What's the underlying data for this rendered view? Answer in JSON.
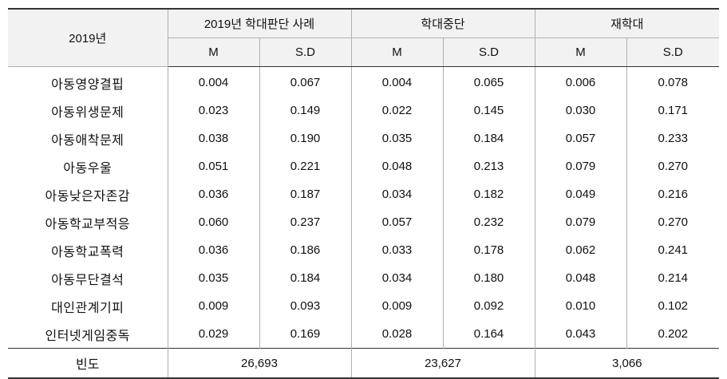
{
  "table": {
    "corner_label": "2019년",
    "groups": [
      "2019년 학대판단 사례",
      "학대중단",
      "재학대"
    ],
    "subheaders": [
      "M",
      "S.D",
      "M",
      "S.D",
      "M",
      "S.D"
    ],
    "rows": [
      {
        "label": "아동영양결핍",
        "values": [
          "0.004",
          "0.067",
          "0.004",
          "0.065",
          "0.006",
          "0.078"
        ]
      },
      {
        "label": "아동위생문제",
        "values": [
          "0.023",
          "0.149",
          "0.022",
          "0.145",
          "0.030",
          "0.171"
        ]
      },
      {
        "label": "아동애착문제",
        "values": [
          "0.038",
          "0.190",
          "0.035",
          "0.184",
          "0.057",
          "0.233"
        ]
      },
      {
        "label": "아동우울",
        "values": [
          "0.051",
          "0.221",
          "0.048",
          "0.213",
          "0.079",
          "0.270"
        ]
      },
      {
        "label": "아동낮은자존감",
        "values": [
          "0.036",
          "0.187",
          "0.034",
          "0.182",
          "0.049",
          "0.216"
        ]
      },
      {
        "label": "아동학교부적응",
        "values": [
          "0.060",
          "0.237",
          "0.057",
          "0.232",
          "0.079",
          "0.270"
        ]
      },
      {
        "label": "아동학교폭력",
        "values": [
          "0.036",
          "0.186",
          "0.033",
          "0.178",
          "0.062",
          "0.241"
        ]
      },
      {
        "label": "아동무단결석",
        "values": [
          "0.035",
          "0.184",
          "0.034",
          "0.180",
          "0.048",
          "0.214"
        ]
      },
      {
        "label": "대인관계기피",
        "values": [
          "0.009",
          "0.093",
          "0.009",
          "0.092",
          "0.010",
          "0.102"
        ]
      },
      {
        "label": "인터넷게임중독",
        "values": [
          "0.029",
          "0.169",
          "0.028",
          "0.164",
          "0.043",
          "0.202"
        ]
      }
    ],
    "footer": {
      "label": "빈도",
      "values": [
        "26,693",
        "23,627",
        "3,066"
      ]
    }
  }
}
